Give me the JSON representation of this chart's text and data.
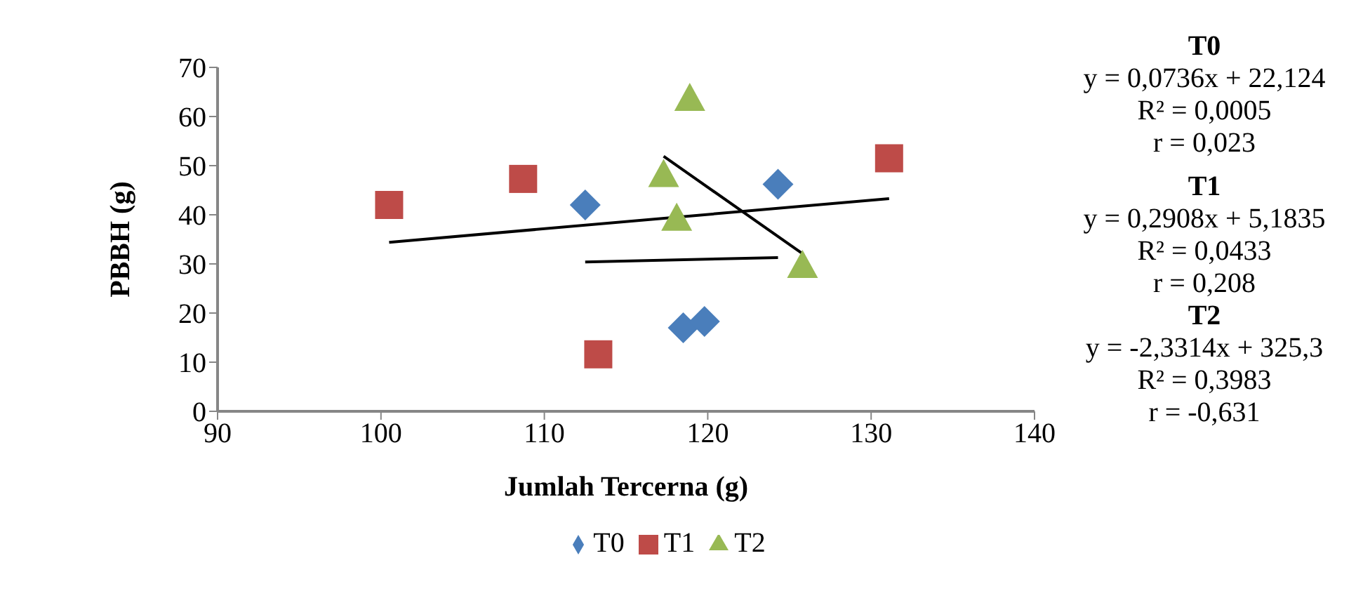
{
  "chart_data": {
    "type": "scatter",
    "xlabel": "Jumlah Tercerna (g)",
    "ylabel": "PBBH (g)",
    "xlim": [
      90,
      140
    ],
    "xticks": [
      90,
      100,
      110,
      120,
      130,
      140
    ],
    "ylim": [
      0,
      70
    ],
    "yticks": [
      0,
      10,
      20,
      30,
      40,
      50,
      60,
      70
    ],
    "grid": false,
    "legend": "bottom",
    "series": [
      {
        "name": "T0",
        "color": "#4a7ebb",
        "marker": "diamond",
        "x": [
          112.5,
          118.5,
          119.8,
          124.3
        ],
        "values": [
          42,
          17,
          18.3,
          46.2
        ]
      },
      {
        "name": "T1",
        "color": "#be4b48",
        "marker": "square",
        "x": [
          100.5,
          108.7,
          113.3,
          131.1
        ],
        "values": [
          42,
          47.3,
          11.6,
          51.5
        ]
      },
      {
        "name": "T2",
        "color": "#98b954",
        "marker": "triangle",
        "x": [
          117.3,
          118.1,
          118.9,
          125.8
        ],
        "values": [
          48.5,
          39.6,
          64,
          30
        ]
      },
      {
        "type": "line",
        "color": "#000000",
        "x": [
          112.5,
          124.3
        ],
        "values": [
          30.4,
          31.3
        ]
      },
      {
        "type": "line",
        "color": "#000000",
        "x": [
          100.5,
          131.1
        ],
        "values": [
          34.4,
          43.3
        ]
      },
      {
        "type": "line",
        "color": "#000000",
        "x": [
          117.3,
          125.8
        ],
        "values": [
          51.9,
          32.1
        ]
      }
    ],
    "annotations": [
      "T0",
      "y = 0,0736x + 22,124",
      "R² = 0,0005",
      "r = 0,023",
      "T1",
      "y = 0,2908x + 5,1835",
      "R² = 0,0433",
      "r = 0,208",
      "T2",
      "y = -2,3314x + 325,3",
      "R² = 0,3983",
      "r = -0,631"
    ]
  }
}
